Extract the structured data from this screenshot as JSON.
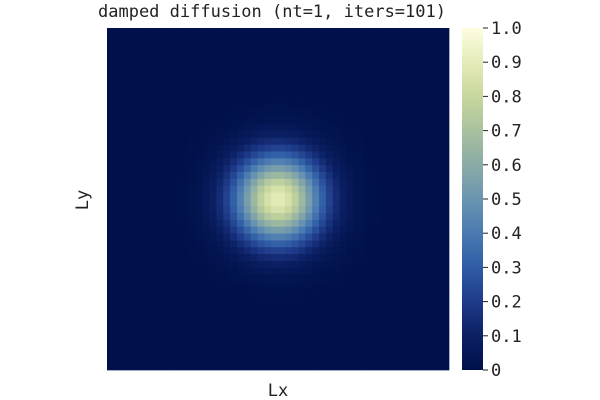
{
  "chart_data": {
    "type": "heatmap",
    "title": "damped diffusion (nt=1, iters=101)",
    "xlabel": "Lx",
    "ylabel": "Ly",
    "grid": false,
    "field": {
      "shape": "gaussian",
      "center_x": 0.5,
      "center_y": 0.5,
      "peak_value": 0.9,
      "sigma": 0.09
    },
    "colorbar": {
      "range": [
        0,
        1
      ],
      "ticks": [
        "0",
        "0.1",
        "0.2",
        "0.3",
        "0.4",
        "0.5",
        "0.6",
        "0.7",
        "0.8",
        "0.9",
        "1.0"
      ],
      "colormap": [
        {
          "v": 0.0,
          "color": "#00104a"
        },
        {
          "v": 0.1,
          "color": "#0b2063"
        },
        {
          "v": 0.2,
          "color": "#1f3a8a"
        },
        {
          "v": 0.3,
          "color": "#2f5ca5"
        },
        {
          "v": 0.4,
          "color": "#4a7ab0"
        },
        {
          "v": 0.5,
          "color": "#6a95b0"
        },
        {
          "v": 0.6,
          "color": "#8aaba6"
        },
        {
          "v": 0.7,
          "color": "#a9c19e"
        },
        {
          "v": 0.8,
          "color": "#c8d79d"
        },
        {
          "v": 0.9,
          "color": "#e6ebb9"
        },
        {
          "v": 1.0,
          "color": "#fdfde0"
        }
      ]
    }
  }
}
